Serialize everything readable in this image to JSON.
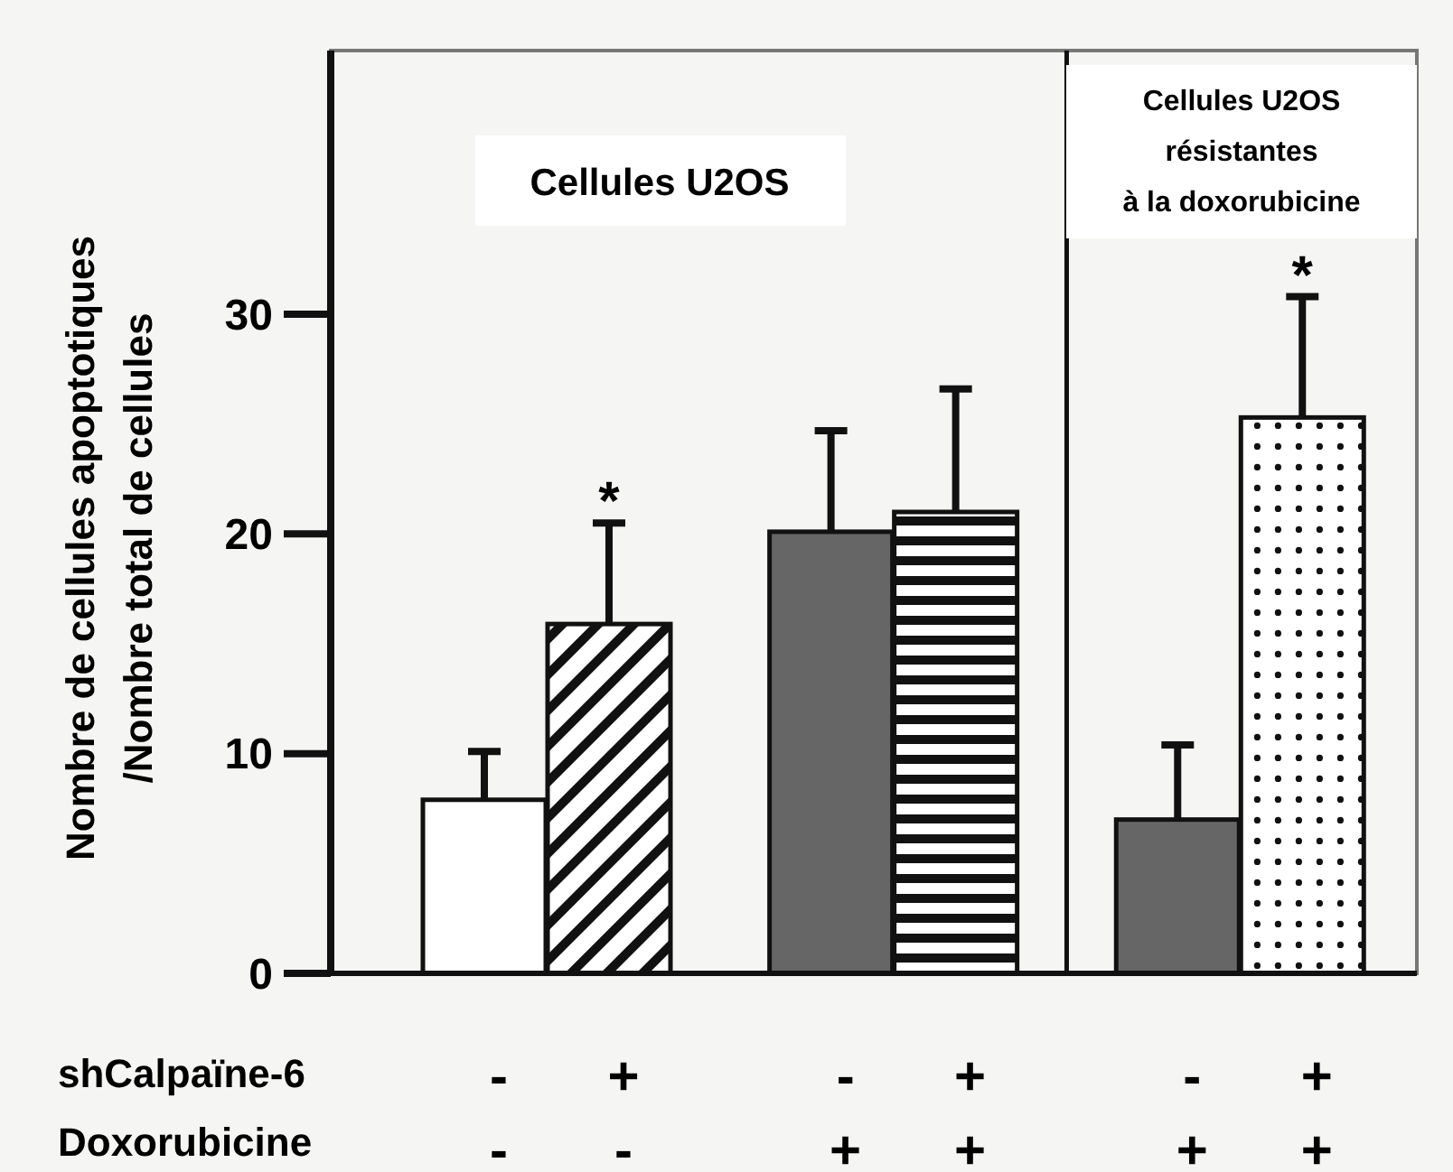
{
  "chart_data": {
    "type": "bar",
    "ylabel": "Nombre de cellules apoptotiques\n/Nombre total de cellules",
    "categories": [
      "-\n-",
      "+\n-",
      "-\n+",
      "+\n+",
      "-\n+",
      "+\n+"
    ],
    "values": [
      7.9,
      15.9,
      20.1,
      21.0,
      7.0,
      25.3
    ],
    "colors": [
      "#ffffff",
      "#111111",
      "#666666",
      "#111111",
      "#666666",
      "#111111"
    ],
    "errors": [
      [
        7.9,
        10.1
      ],
      [
        15.9,
        20.5
      ],
      [
        20.1,
        24.7
      ],
      [
        21.0,
        26.6
      ],
      [
        7.0,
        10.4
      ],
      [
        25.3,
        30.8
      ]
    ],
    "value_labels": [
      null,
      "*",
      null,
      null,
      null,
      "*"
    ],
    "ylim": [
      0,
      42
    ],
    "yticks": [
      0,
      10,
      20,
      30
    ],
    "annotations": [
      "Cellules U2OS",
      "Cellules U2OS\nrésistantes\nà la doxorubicine",
      "shCalpaïne-6",
      "Doxorubicine"
    ]
  }
}
